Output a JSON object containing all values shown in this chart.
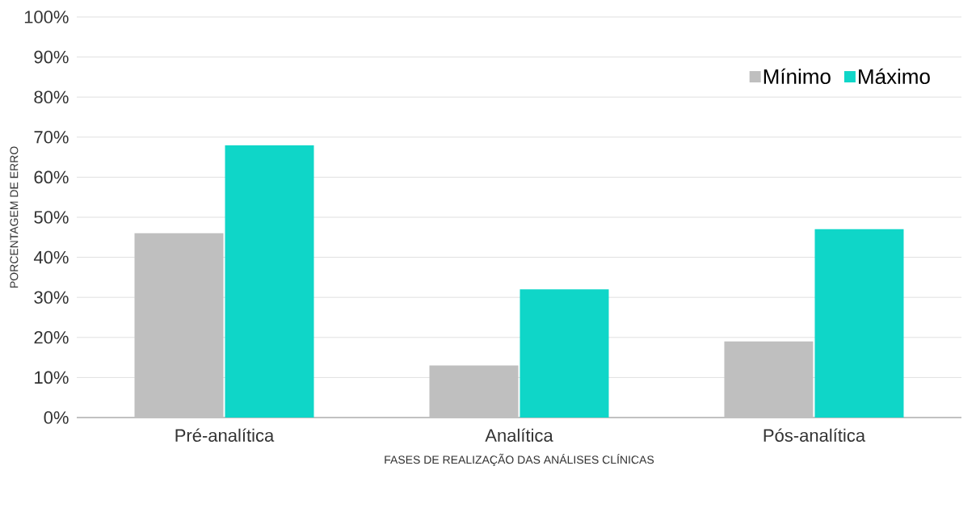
{
  "chart_data": {
    "type": "bar",
    "xlabel": "FASES DE REALIZAÇÃO DAS ANÁLISES CLÍNICAS",
    "ylabel": "PORCENTAGEM DE ERRO",
    "categories": [
      "Pré-analítica",
      "Analítica",
      "Pós-analítica"
    ],
    "series": [
      {
        "name": "Mínimo",
        "color": "#bfbfbf",
        "values": [
          46,
          13,
          19
        ]
      },
      {
        "name": "Máximo",
        "color": "#0fd6c8",
        "values": [
          68,
          32,
          47
        ]
      }
    ],
    "ylim": [
      0,
      100
    ],
    "yticks": [
      {
        "value": 0,
        "label": "0%"
      },
      {
        "value": 10,
        "label": "10%"
      },
      {
        "value": 20,
        "label": "20%"
      },
      {
        "value": 30,
        "label": "30%"
      },
      {
        "value": 40,
        "label": "40%"
      },
      {
        "value": 50,
        "label": "50%"
      },
      {
        "value": 60,
        "label": "60%"
      },
      {
        "value": 70,
        "label": "70%"
      },
      {
        "value": 80,
        "label": "80%"
      },
      {
        "value": 90,
        "label": "90%"
      },
      {
        "value": 100,
        "label": "100%"
      }
    ],
    "grid": "y",
    "legend": "top right"
  }
}
